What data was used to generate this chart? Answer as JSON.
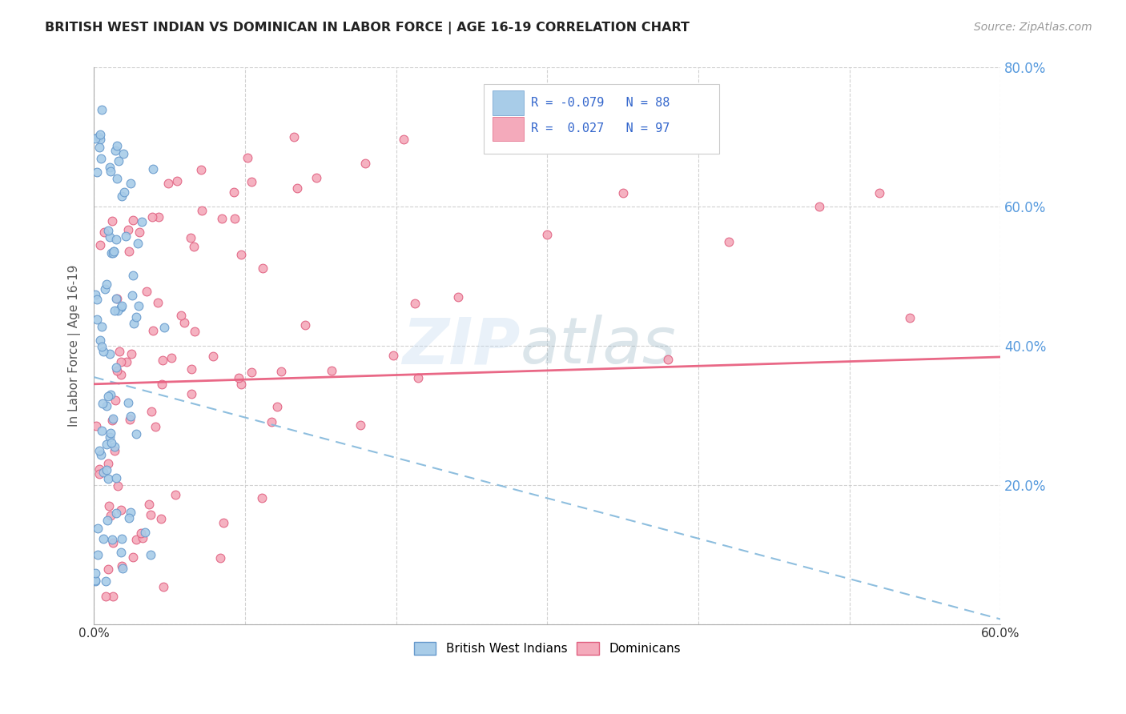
{
  "title": "BRITISH WEST INDIAN VS DOMINICAN IN LABOR FORCE | AGE 16-19 CORRELATION CHART",
  "source": "Source: ZipAtlas.com",
  "ylabel": "In Labor Force | Age 16-19",
  "legend_entry1": "R = -0.079   N = 88",
  "legend_entry2": "R =  0.027   N = 97",
  "legend_label1": "British West Indians",
  "legend_label2": "Dominicans",
  "bwi_color": "#A8CCE8",
  "bwi_edge_color": "#6699CC",
  "dom_color": "#F4AABB",
  "dom_edge_color": "#E06080",
  "bwi_line_color": "#88BBDD",
  "dom_line_color": "#E86080",
  "right_tick_color": "#5599DD",
  "xlim": [
    0.0,
    0.6
  ],
  "ylim": [
    0.0,
    0.8
  ],
  "right_yticks": [
    0.2,
    0.4,
    0.6,
    0.8
  ],
  "grid_color": "#CCCCCC",
  "watermark_color": "#C8DFF0",
  "bwi_line_intercept": 0.355,
  "bwi_line_slope": -0.58,
  "dom_line_intercept": 0.345,
  "dom_line_slope": 0.065
}
